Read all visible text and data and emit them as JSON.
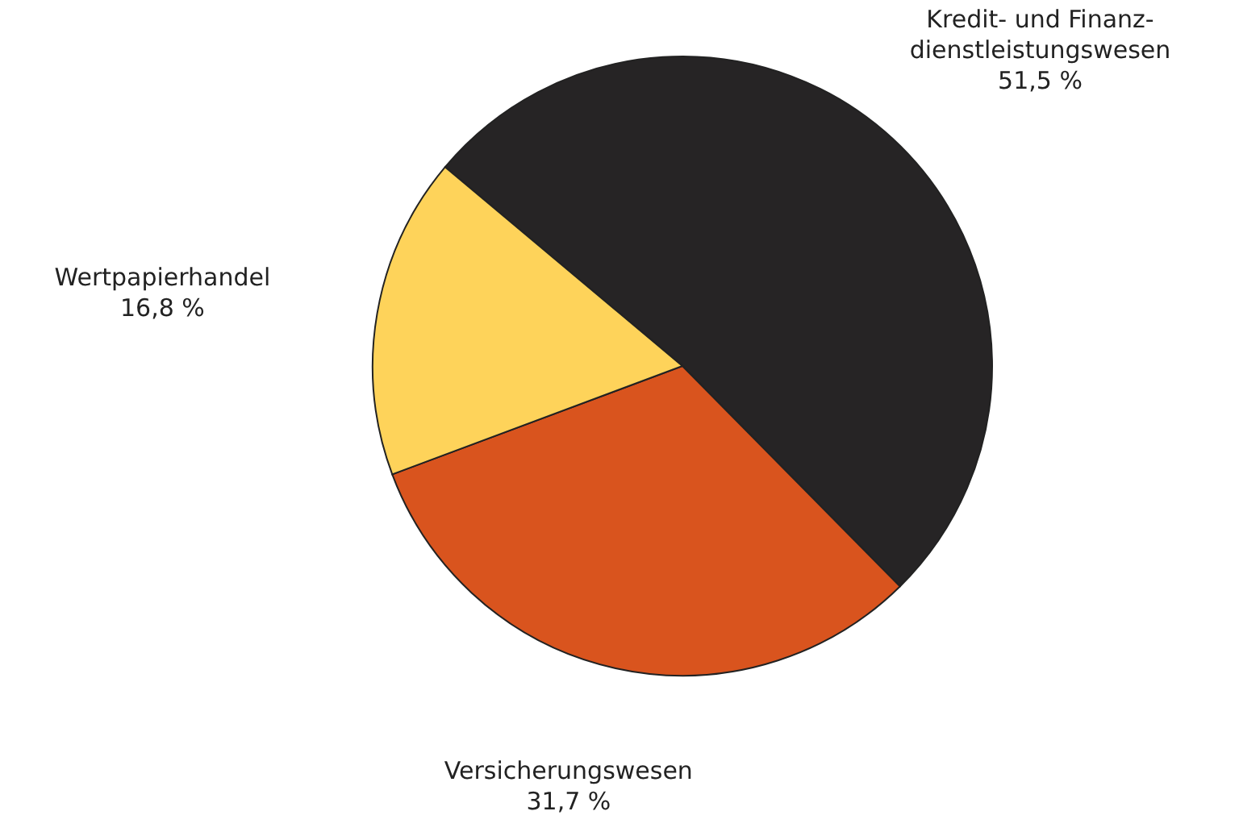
{
  "chart_data": {
    "type": "pie",
    "categories": [
      "Kredit- und Finanz-\ndienstleistungswesen",
      "Versicherungswesen",
      "Wertpapierhandel"
    ],
    "values": [
      51.5,
      31.7,
      16.8
    ],
    "colors": [
      "#262425",
      "#d9541e",
      "#fed35a"
    ],
    "value_labels": [
      "51,5 %",
      "31,7 %",
      "16,8 %"
    ],
    "legend": false
  }
}
